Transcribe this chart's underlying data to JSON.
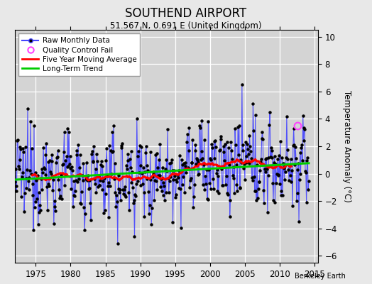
{
  "title": "SOUTHEND AIRPORT",
  "subtitle": "51.567 N, 0.691 E (United Kingdom)",
  "ylabel": "Temperature Anomaly (°C)",
  "credit": "Berkeley Earth",
  "xlim": [
    1972.0,
    2015.5
  ],
  "ylim": [
    -6.5,
    10.5
  ],
  "yticks": [
    -6,
    -4,
    -2,
    0,
    2,
    4,
    6,
    8,
    10
  ],
  "xticks": [
    1975,
    1980,
    1985,
    1990,
    1995,
    2000,
    2005,
    2010,
    2015
  ],
  "fig_bg_color": "#e8e8e8",
  "plot_bg_color": "#d4d4d4",
  "line_color": "#4444ff",
  "dot_color": "#000000",
  "ma_color": "#ff0000",
  "trend_color": "#00cc00",
  "qc_color": "#ff44ff",
  "qc_points": [
    [
      2012.5,
      3.5
    ]
  ],
  "seed": 12345
}
